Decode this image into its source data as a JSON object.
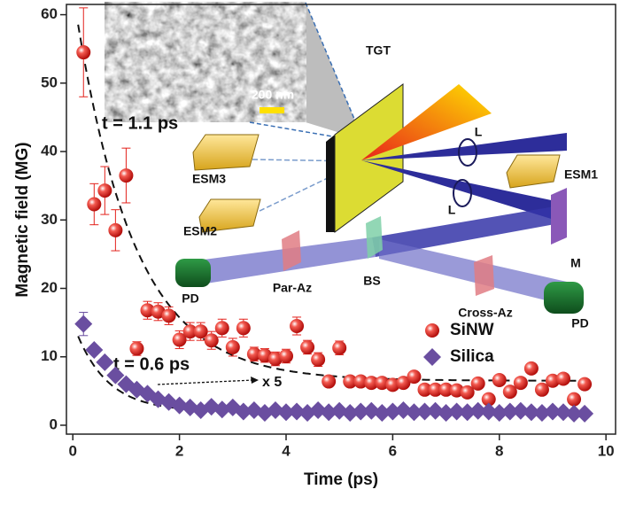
{
  "chart_data": {
    "type": "scatter",
    "x_label": "Time (ps)",
    "y_label": "Magnetic field (MG)",
    "xlim": [
      -0.12,
      10.18
    ],
    "ylim": [
      -1.3,
      61.5
    ],
    "xticks": [
      0,
      2,
      4,
      6,
      8,
      10
    ],
    "yticks": [
      0,
      10,
      20,
      30,
      40,
      50,
      60
    ],
    "legend": "lower right",
    "series": [
      {
        "name": "SiNW",
        "color": "#e3221c",
        "marker": "sphere",
        "x": [
          0.2,
          0.4,
          0.6,
          0.8,
          1.0,
          1.2,
          1.4,
          1.6,
          1.8,
          2.0,
          2.2,
          2.4,
          2.6,
          2.8,
          3.0,
          3.2,
          3.4,
          3.6,
          3.8,
          4.0,
          4.2,
          4.4,
          4.6,
          4.8,
          5.0,
          5.2,
          5.4,
          5.6,
          5.8,
          6.0,
          6.2,
          6.4,
          6.6,
          6.8,
          7.0,
          7.2,
          7.4,
          7.6,
          7.8,
          8.0,
          8.2,
          8.4,
          8.6,
          8.8,
          9.0,
          9.2,
          9.4,
          9.6
        ],
        "values": [
          54.5,
          32.3,
          34.3,
          28.5,
          36.5,
          11.2,
          16.8,
          16.6,
          16.0,
          12.5,
          13.7,
          13.7,
          12.4,
          14.2,
          11.4,
          14.2,
          10.4,
          10.2,
          9.7,
          10.1,
          14.5,
          11.4,
          9.6,
          6.4,
          11.3,
          6.4,
          6.4,
          6.2,
          6.2,
          5.9,
          6.2,
          7.1,
          5.2,
          5.2,
          5.2,
          5.1,
          4.8,
          6.1,
          3.8,
          6.6,
          4.9,
          6.2,
          8.3,
          5.2,
          6.5,
          6.8,
          3.8,
          6.0
        ],
        "errors": [
          6.5,
          3,
          3.5,
          3,
          4,
          1,
          1.3,
          1.3,
          1.3,
          1.3,
          1.3,
          1.3,
          1.3,
          1.3,
          1.3,
          1.3,
          1,
          1,
          1,
          1,
          1.3,
          1,
          1,
          0.5,
          1,
          0.5,
          0.5,
          0.5,
          0.5,
          0.5,
          0.5,
          0.5,
          0.5,
          0.5,
          0.5,
          0.5,
          0.5,
          0.5,
          0.5,
          0.5,
          0.5,
          0.5,
          0.5,
          0.5,
          0.5,
          0.5,
          0.5,
          0.5
        ]
      },
      {
        "name": "Silica",
        "color": "#6a4ea0",
        "marker": "diamond",
        "x": [
          0.2,
          0.4,
          0.6,
          0.8,
          1.0,
          1.2,
          1.4,
          1.6,
          1.8,
          2.0,
          2.2,
          2.4,
          2.6,
          2.8,
          3.0,
          3.2,
          3.4,
          3.6,
          3.8,
          4.0,
          4.2,
          4.4,
          4.6,
          4.8,
          5.0,
          5.2,
          5.4,
          5.6,
          5.8,
          6.0,
          6.2,
          6.4,
          6.6,
          6.8,
          7.0,
          7.2,
          7.4,
          7.6,
          7.8,
          8.0,
          8.2,
          8.4,
          8.6,
          8.8,
          9.0,
          9.2,
          9.4,
          9.6
        ],
        "values": [
          14.8,
          11.0,
          9.2,
          7.3,
          6.0,
          5.2,
          4.6,
          3.8,
          3.4,
          2.9,
          2.6,
          2.2,
          2.7,
          2.3,
          2.6,
          2.0,
          2.2,
          1.8,
          2.2,
          1.9,
          2.0,
          1.8,
          2.2,
          1.9,
          2.1,
          1.8,
          2.0,
          2.1,
          1.8,
          2.0,
          2.2,
          1.9,
          2.0,
          2.1,
          1.8,
          2.0,
          1.9,
          2.1,
          2.0,
          1.8,
          2.0,
          2.1,
          1.9,
          1.8,
          2.0,
          1.9,
          1.7,
          1.7
        ],
        "errors": [
          1.7,
          0.5,
          0.5,
          0.5,
          0.5,
          0.5,
          0.5,
          0.5,
          0.5,
          0.5,
          0.5,
          0.5,
          0.5,
          0.5,
          0.5,
          0.5,
          0.5,
          0.5,
          0.5,
          0.5,
          0.5,
          0.5,
          0.5,
          0.5,
          0.5,
          0.5,
          0.5,
          0.5,
          0.5,
          0.5,
          0.5,
          0.5,
          0.5,
          0.5,
          0.5,
          0.5,
          0.5,
          0.5,
          0.5,
          0.5,
          0.5,
          0.5,
          0.5,
          0.5,
          0.5,
          0.5,
          0.5,
          0.5
        ]
      }
    ],
    "fits": [
      {
        "amplitude": 57,
        "tau": 1.1,
        "offset": 6.5,
        "x_range": [
          0.1,
          9.7
        ]
      },
      {
        "amplitude": 13,
        "tau": 0.6,
        "offset": 2,
        "x_range": [
          0.1,
          9.7
        ]
      }
    ],
    "annotations": [
      "t = 1.1 ps",
      "t = 0.6 ps",
      "x 5"
    ],
    "inset": {
      "scale_bar": "200 nm",
      "labels": [
        "TGT",
        "L",
        "L",
        "ESM1",
        "ESM3",
        "ESM2",
        "M",
        "PD",
        "Par-Az",
        "BS",
        "Cross-Az",
        "PD"
      ]
    }
  }
}
